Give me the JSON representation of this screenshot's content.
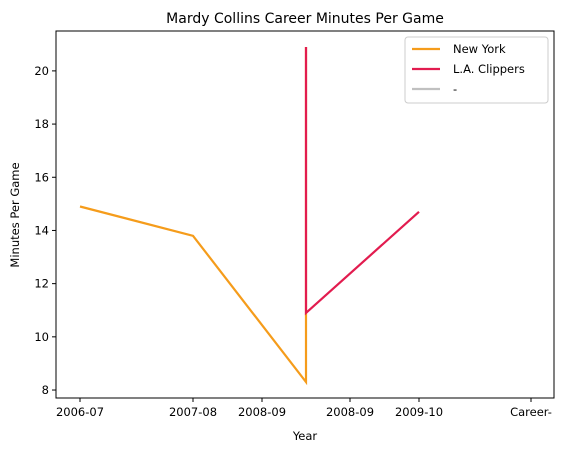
{
  "chart_data": {
    "type": "line",
    "title": "Mardy Collins Career Minutes Per Game",
    "xlabel": "Year",
    "ylabel": "Minutes Per Game",
    "categories": [
      "2006-07",
      "2007-08",
      "2008-09",
      "2008-09",
      "2009-10",
      "Career-"
    ],
    "ylim": [
      7.7,
      21.5
    ],
    "yticks": [
      8,
      10,
      12,
      14,
      16,
      18,
      20
    ],
    "grid": false,
    "legend_position": "top-right",
    "series": [
      {
        "name": "New York",
        "color": "#f59c1b",
        "points": [
          {
            "x": 0.0,
            "y": 14.9
          },
          {
            "x": 1.0,
            "y": 13.8
          },
          {
            "x": 2.0,
            "y": 8.3
          },
          {
            "x": 2.0,
            "y": 20.9
          }
        ]
      },
      {
        "name": "L.A. Clippers",
        "color": "#e21c4f",
        "points": [
          {
            "x": 2.0,
            "y": 20.9
          },
          {
            "x": 3.0,
            "y": 10.9
          },
          {
            "x": 4.0,
            "y": 14.7
          }
        ]
      },
      {
        "name": "-",
        "color": "#c0c0c0",
        "points": []
      }
    ]
  }
}
